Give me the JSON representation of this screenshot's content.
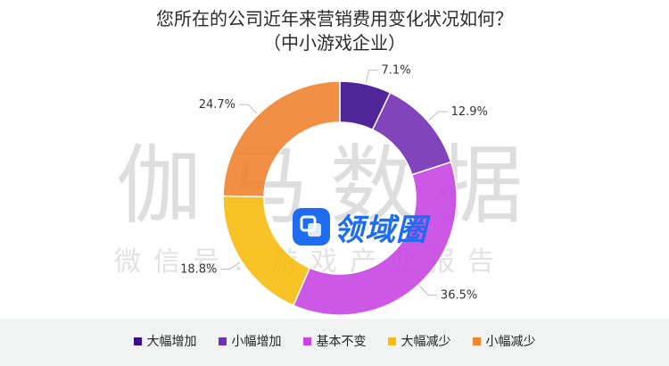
{
  "chart_data": {
    "type": "pie",
    "title": "您所在的公司近年来营销费用变化状况如何？",
    "subtitle": "（中小游戏企业）",
    "donut": true,
    "legend_position": "bottom",
    "series": [
      {
        "name": "大幅增加",
        "value": 7.1,
        "label": "7.1%",
        "color": "#3d0d8c"
      },
      {
        "name": "小幅增加",
        "value": 12.9,
        "label": "12.9%",
        "color": "#7330b2"
      },
      {
        "name": "基本不变",
        "value": 36.5,
        "label": "36.5%",
        "color": "#c946e3"
      },
      {
        "name": "大幅减少",
        "value": 18.8,
        "label": "18.8%",
        "color": "#f6bd0f"
      },
      {
        "name": "小幅减少",
        "value": 24.7,
        "label": "24.7%",
        "color": "#ef8431"
      }
    ]
  },
  "watermark": {
    "main": "伽马数据",
    "sub": "微信号：游戏产业报告",
    "badge": "领域圈"
  }
}
